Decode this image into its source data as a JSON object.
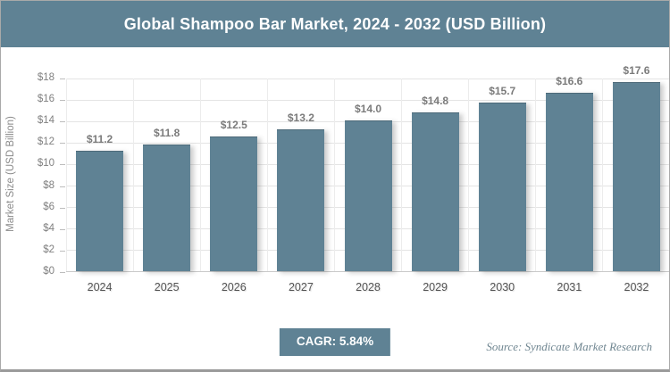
{
  "header": {
    "title": "Global Shampoo Bar Market, 2024 - 2032 (USD Billion)"
  },
  "chart_data": {
    "type": "bar",
    "title": "Global Shampoo Bar Market, 2024 - 2032 (USD Billion)",
    "categories": [
      "2024",
      "2025",
      "2026",
      "2027",
      "2028",
      "2029",
      "2030",
      "2031",
      "2032"
    ],
    "values": [
      11.2,
      11.8,
      12.5,
      13.2,
      14.0,
      14.8,
      15.7,
      16.6,
      17.6
    ],
    "value_labels": [
      "$11.2",
      "$11.8",
      "$12.5",
      "$13.2",
      "$14.0",
      "$14.8",
      "$15.7",
      "$16.6",
      "$17.6"
    ],
    "xlabel": "",
    "ylabel": "Market Size (USD Billion)",
    "ylim": [
      0,
      18
    ],
    "ytick_step": 2,
    "ytick_labels": [
      "$0",
      "$2",
      "$4",
      "$6",
      "$8",
      "$10",
      "$12",
      "$14",
      "$16",
      "$18"
    ],
    "grid": true,
    "legend": false,
    "bar_color": "#5f8294"
  },
  "footer": {
    "cagr_label": "CAGR: 5.84%",
    "source": "Source: Syndicate Market Research"
  },
  "colors": {
    "accent": "#5f8294",
    "title_bar_bg": "#5f8294",
    "badge_bg": "#5f8294",
    "grid_line": "#e4e4e4",
    "axis_line": "#c9c9c9",
    "value_label_text": "#7b7b7b",
    "tick_text": "#808080",
    "category_text": "#545454",
    "source_text": "#708691"
  }
}
